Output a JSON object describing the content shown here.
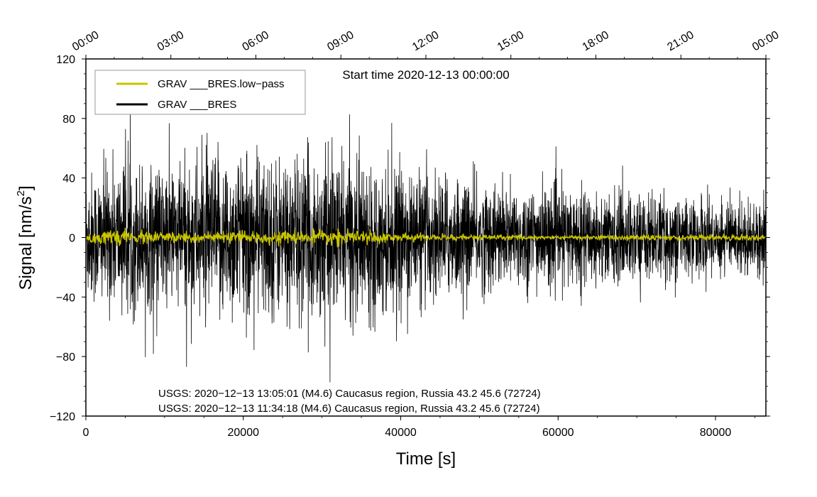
{
  "chart_data": {
    "type": "line",
    "title": "",
    "start_time": "Start time 2020-12-13 00:00:00",
    "xlabel": "Time [s]",
    "ylabel_main": "Signal [nm/s",
    "ylabel_sup": "2",
    "ylabel_end": "]",
    "xlim": [
      0,
      86400
    ],
    "ylim": [
      -120,
      120
    ],
    "x_ticks": [
      0,
      20000,
      40000,
      60000,
      80000
    ],
    "x_tick_labels": [
      "0",
      "20000",
      "40000",
      "60000",
      "80000"
    ],
    "y_ticks": [
      120,
      80,
      40,
      0,
      -40,
      -80,
      -120
    ],
    "y_tick_labels": [
      "120",
      "80",
      "40",
      "0",
      "−40",
      "−80",
      "−120"
    ],
    "top_ticks_seconds": [
      0,
      10800,
      21600,
      32400,
      43200,
      54000,
      64800,
      75600,
      86400
    ],
    "top_tick_labels": [
      "00:00",
      "03:00",
      "06:00",
      "09:00",
      "12:00",
      "15:00",
      "18:00",
      "21:00",
      "00:00"
    ],
    "legend_position": "top-left",
    "series": [
      {
        "name": "GRAV ___BRES.low−pass",
        "color": "#c8c400",
        "amplitude_profile_x": [
          0,
          10000,
          20000,
          30000,
          33000,
          40000,
          45000,
          50000,
          60000,
          70000,
          80000,
          86400
        ],
        "amplitude_profile_y": [
          5,
          4.5,
          4,
          5,
          5.5,
          3,
          2.5,
          2,
          1.5,
          2,
          2,
          2
        ]
      },
      {
        "name": "GRAV ___BRES",
        "color": "#000000",
        "amplitude_profile_x": [
          0,
          5000,
          10000,
          15000,
          20000,
          25000,
          30000,
          35000,
          40000,
          45000,
          50000,
          55000,
          60000,
          65000,
          70000,
          75000,
          80000,
          86400
        ],
        "amplitude_profile_y": [
          50,
          58,
          55,
          62,
          65,
          60,
          62,
          60,
          52,
          48,
          42,
          40,
          38,
          36,
          34,
          32,
          30,
          28
        ]
      }
    ],
    "annotations": [
      "USGS: 2020−12−13 13:05:01 (M4.6) Caucasus region, Russia 43.2 45.6 (72724)",
      "USGS: 2020−12−13 11:34:18 (M4.6) Caucasus region, Russia 43.2 45.6 (72724)"
    ]
  }
}
